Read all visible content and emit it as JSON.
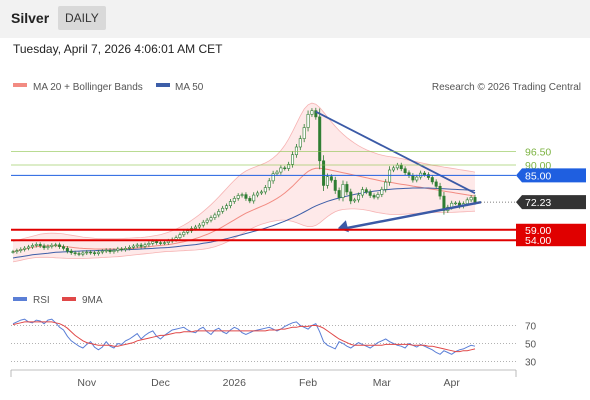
{
  "header": {
    "instrument": "Silver",
    "period_tab": "DAILY",
    "timestamp": "Tuesday, April 7, 2026 4:06:01 AM CET"
  },
  "legend": {
    "ma20_label": "MA 20 + Bollinger Bands",
    "ma50_label": "MA 50",
    "credit": "Research © 2026 Trading Central",
    "rsi_label": "RSI",
    "rsi_ma_label": "9MA"
  },
  "colors": {
    "ma20": "#f28b82",
    "ma50": "#3d5ea8",
    "bollinger_fill": "#fde2e2",
    "resistance_line": "#1f5fe0",
    "support_line": "#e00000",
    "target_line": "#8bc34a",
    "trendline": "#3b5aa6",
    "candle": "#2e7d32",
    "current_price_badge": "#333333",
    "rsi": "#5b7fd6",
    "rsi_ma": "#e04848"
  },
  "chart_data": {
    "type": "candlestick",
    "ylim": [
      34,
      123
    ],
    "x_ticks": [
      "Nov",
      "Dec",
      "2026",
      "Feb",
      "Mar",
      "Apr"
    ],
    "levels": [
      {
        "value": 96.5,
        "label": "96.50",
        "kind": "target"
      },
      {
        "value": 90.0,
        "label": "90.00",
        "kind": "target"
      },
      {
        "value": 85.0,
        "label": "85.00",
        "kind": "resistance"
      },
      {
        "value": 72.23,
        "label": "72.23",
        "kind": "current"
      },
      {
        "value": 59.0,
        "label": "59.00",
        "kind": "support"
      },
      {
        "value": 54.0,
        "label": "54.00",
        "kind": "support"
      }
    ],
    "closes": [
      48.5,
      49.0,
      49.6,
      50.2,
      50.8,
      51.5,
      52.0,
      51.3,
      50.4,
      51.0,
      51.6,
      51.8,
      50.9,
      50.1,
      48.8,
      48.0,
      47.6,
      47.3,
      47.9,
      48.3,
      48.0,
      47.6,
      48.3,
      48.8,
      49.2,
      48.5,
      49.1,
      49.8,
      49.5,
      50.1,
      50.6,
      51.2,
      51.7,
      51.0,
      51.8,
      52.5,
      53.4,
      52.8,
      52.6,
      52.8,
      53.6,
      54.3,
      55.2,
      56.6,
      57.8,
      58.5,
      59.6,
      60.3,
      61.2,
      62.6,
      63.6,
      64.8,
      66.1,
      67.8,
      69.3,
      70.5,
      72.5,
      74.0,
      75.4,
      75.8,
      74.0,
      72.8,
      75.6,
      76.6,
      77.1,
      79.2,
      82.4,
      85.8,
      86.6,
      88.6,
      88.3,
      90.3,
      94.9,
      98.6,
      102.6,
      107.9,
      114.2,
      116.0,
      113.0,
      92.0,
      80.2,
      84.4,
      82.7,
      77.8,
      74.4,
      80.7,
      77.1,
      72.8,
      73.3,
      75.6,
      78.2,
      77.1,
      75.4,
      74.6,
      75.9,
      78.3,
      81.8,
      87.6,
      88.6,
      89.9,
      88.2,
      86.3,
      84.9,
      82.8,
      84.2,
      86.1,
      85.4,
      84.0,
      81.9,
      79.8,
      75.1,
      68.2,
      69.8,
      71.7,
      71.8,
      70.3,
      71.5,
      73.3,
      74.5,
      72.2
    ],
    "bollinger_upper": [
      53.4,
      53.9,
      54.4,
      54.9,
      55.4,
      55.9,
      56.4,
      56.9,
      57.1,
      57.3,
      57.4,
      57.3,
      57.2,
      57.0,
      56.7,
      56.4,
      56.1,
      55.8,
      55.5,
      55.3,
      55.1,
      54.9,
      54.8,
      54.7,
      54.7,
      54.7,
      54.7,
      54.7,
      54.8,
      54.9,
      55.0,
      55.1,
      55.2,
      55.3,
      55.5,
      55.7,
      56.0,
      56.3,
      56.7,
      57.2,
      57.8,
      58.5,
      59.3,
      60.2,
      61.2,
      62.3,
      63.5,
      64.8,
      66.2,
      67.7,
      69.3,
      71.0,
      72.8,
      74.7,
      76.7,
      78.7,
      80.7,
      82.6,
      84.4,
      85.9,
      87.1,
      88.0,
      88.8,
      89.5,
      90.2,
      91.0,
      92.0,
      93.3,
      94.9,
      96.9,
      99.4,
      102.4,
      105.9,
      109.7,
      113.5,
      116.8,
      118.8,
      119.6,
      119.1,
      117.5,
      115.3,
      112.9,
      110.6,
      108.5,
      106.5,
      104.7,
      103.1,
      101.7,
      100.4,
      99.2,
      98.2,
      97.3,
      96.5,
      95.8,
      95.2,
      94.7,
      94.3,
      94.0,
      93.7,
      93.4,
      93.1,
      92.7,
      92.3,
      91.9,
      91.5,
      91.1,
      90.7,
      90.3,
      89.9,
      89.6,
      89.3,
      89.0,
      88.7,
      88.4,
      88.1,
      87.8,
      87.5,
      87.2,
      86.9,
      86.6
    ],
    "bollinger_lower": [
      43.6,
      44.0,
      44.4,
      44.8,
      45.2,
      45.5,
      45.7,
      45.8,
      45.8,
      45.8,
      45.7,
      45.6,
      45.5,
      45.4,
      45.3,
      45.2,
      45.2,
      45.2,
      45.2,
      45.3,
      45.4,
      45.5,
      45.6,
      45.7,
      45.8,
      45.9,
      46.0,
      46.1,
      46.3,
      46.5,
      46.7,
      46.9,
      47.1,
      47.3,
      47.5,
      47.7,
      47.9,
      48.1,
      48.3,
      48.5,
      48.6,
      48.7,
      48.8,
      48.9,
      49.0,
      49.1,
      49.2,
      49.3,
      49.5,
      49.7,
      50.0,
      50.4,
      50.9,
      51.5,
      52.2,
      53.0,
      53.9,
      54.9,
      56.0,
      57.1,
      58.2,
      59.2,
      60.1,
      60.9,
      61.6,
      62.2,
      62.7,
      63.1,
      63.4,
      63.6,
      63.6,
      63.4,
      63.0,
      62.4,
      61.7,
      61.0,
      60.5,
      60.5,
      61.1,
      62.3,
      63.8,
      65.3,
      66.6,
      67.6,
      68.3,
      68.7,
      68.9,
      69.0,
      69.0,
      68.9,
      68.7,
      68.4,
      68.0,
      67.6,
      67.2,
      66.9,
      66.6,
      66.4,
      66.3,
      66.3,
      66.4,
      66.5,
      66.6,
      66.7,
      66.8,
      66.9,
      67.0,
      67.1,
      67.2,
      67.3,
      67.3,
      67.3,
      67.3,
      67.3,
      67.4,
      67.5,
      67.6,
      67.7,
      67.8,
      67.9
    ],
    "ma20": [
      48.5,
      49.0,
      49.4,
      49.8,
      50.2,
      50.6,
      50.9,
      51.1,
      51.2,
      51.3,
      51.4,
      51.3,
      51.2,
      51.0,
      50.8,
      50.6,
      50.4,
      50.2,
      50.1,
      50.0,
      49.9,
      49.8,
      49.8,
      49.8,
      49.8,
      49.8,
      49.8,
      49.8,
      49.8,
      49.9,
      50.0,
      50.1,
      50.3,
      50.5,
      50.7,
      50.9,
      51.1,
      51.3,
      51.5,
      51.7,
      51.9,
      52.2,
      52.5,
      52.9,
      53.3,
      53.7,
      54.2,
      54.8,
      55.4,
      56.1,
      56.8,
      57.6,
      58.5,
      59.4,
      60.4,
      61.5,
      62.6,
      63.7,
      64.8,
      65.9,
      66.9,
      67.8,
      68.6,
      69.4,
      70.2,
      71.0,
      71.9,
      72.9,
      74.0,
      75.2,
      76.6,
      78.1,
      79.8,
      81.7,
      83.6,
      85.4,
      86.9,
      87.9,
      88.4,
      88.4,
      88.2,
      87.9,
      87.5,
      87.1,
      86.7,
      86.3,
      85.9,
      85.5,
      85.1,
      84.7,
      84.3,
      83.9,
      83.5,
      83.1,
      82.7,
      82.3,
      82.0,
      81.7,
      81.4,
      81.1,
      80.8,
      80.5,
      80.2,
      79.9,
      79.6,
      79.3,
      79.0,
      78.7,
      78.4,
      78.1,
      77.8,
      77.5,
      77.2,
      76.9,
      76.6,
      76.3,
      76.0,
      75.7,
      75.4,
      75.1
    ],
    "ma50": [
      45.5,
      45.8,
      46.1,
      46.4,
      46.7,
      47.0,
      47.2,
      47.4,
      47.6,
      47.8,
      48.0,
      48.2,
      48.3,
      48.4,
      48.5,
      48.6,
      48.7,
      48.8,
      48.9,
      48.9,
      49.0,
      49.0,
      49.1,
      49.1,
      49.2,
      49.2,
      49.3,
      49.3,
      49.4,
      49.4,
      49.5,
      49.6,
      49.7,
      49.8,
      49.9,
      50.0,
      50.1,
      50.2,
      50.3,
      50.4,
      50.5,
      50.7,
      50.9,
      51.1,
      51.3,
      51.5,
      51.7,
      51.9,
      52.2,
      52.5,
      52.8,
      53.1,
      53.5,
      53.9,
      54.3,
      54.7,
      55.2,
      55.7,
      56.2,
      56.7,
      57.2,
      57.7,
      58.2,
      58.7,
      59.2,
      59.8,
      60.4,
      61.0,
      61.7,
      62.4,
      63.1,
      63.9,
      64.7,
      65.6,
      66.5,
      67.5,
      68.5,
      69.5,
      70.4,
      71.2,
      71.9,
      72.6,
      73.2,
      73.7,
      74.2,
      74.7,
      75.1,
      75.5,
      75.9,
      76.3,
      76.6,
      76.9,
      77.2,
      77.5,
      77.7,
      77.9,
      78.1,
      78.3,
      78.5,
      78.6,
      78.7,
      78.8,
      78.9,
      79.0,
      79.0,
      79.0,
      79.0,
      79.0,
      78.9,
      78.8,
      78.7,
      78.6,
      78.5,
      78.4,
      78.3,
      78.2,
      78.1,
      78.0,
      77.9,
      77.8
    ],
    "projection": [
      [
        79.3,
        57.8
      ]
    ],
    "trendline": [
      {
        "x": 78,
        "y": 115.5
      },
      {
        "x": 119,
        "y": 76.5
      }
    ],
    "rsi": {
      "levels": [
        70,
        50,
        30
      ],
      "values": [
        72,
        74,
        76,
        77,
        74,
        73,
        76,
        75,
        72,
        76,
        77,
        73,
        68,
        65,
        58,
        53,
        50,
        47,
        45,
        49,
        52,
        46,
        43,
        46,
        52,
        47,
        45,
        50,
        49,
        53,
        55,
        58,
        61,
        55,
        59,
        62,
        64,
        58,
        55,
        59,
        62,
        65,
        66,
        67,
        68,
        65,
        63,
        62,
        66,
        68,
        63,
        60,
        65,
        67,
        63,
        61,
        65,
        68,
        66,
        62,
        60,
        62,
        64,
        65,
        66,
        67,
        68,
        66,
        64,
        66,
        69,
        71,
        73,
        74,
        70,
        68,
        66,
        70,
        72,
        63,
        52,
        48,
        46,
        44,
        52,
        50,
        47,
        45,
        48,
        51,
        49,
        47,
        45,
        48,
        51,
        53,
        55,
        52,
        50,
        48,
        47,
        45,
        50,
        48,
        46,
        49,
        47,
        45,
        43,
        40,
        38,
        42,
        40,
        38,
        41,
        43,
        44,
        46,
        48,
        47
      ],
      "ma9": [
        71,
        72,
        73,
        74,
        74,
        74,
        74,
        74,
        74,
        74,
        74,
        73,
        72,
        70,
        67,
        63,
        59,
        56,
        53,
        51,
        50,
        49,
        48,
        48,
        48,
        48,
        47,
        47,
        48,
        49,
        50,
        51,
        53,
        54,
        55,
        56,
        57,
        58,
        59,
        59,
        60,
        61,
        62,
        62,
        63,
        63,
        63,
        64,
        64,
        64,
        64,
        64,
        64,
        64,
        64,
        64,
        64,
        64,
        64,
        64,
        64,
        64,
        64,
        64,
        64,
        64,
        65,
        65,
        65,
        66,
        66,
        67,
        68,
        68,
        69,
        69,
        69,
        70,
        70,
        69,
        67,
        64,
        61,
        58,
        55,
        53,
        51,
        49,
        48,
        48,
        48,
        48,
        48,
        48,
        48,
        48,
        49,
        49,
        49,
        49,
        49,
        49,
        49,
        48,
        48,
        48,
        48,
        47,
        47,
        46,
        45,
        44,
        43,
        42,
        41,
        41,
        42,
        42,
        43,
        44
      ]
    }
  }
}
